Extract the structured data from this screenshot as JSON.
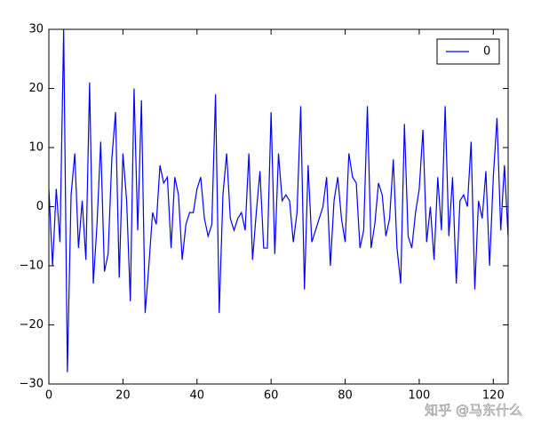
{
  "chart_data": {
    "type": "line",
    "x": [
      0,
      1,
      2,
      3,
      4,
      5,
      6,
      7,
      8,
      9,
      10,
      11,
      12,
      13,
      14,
      15,
      16,
      17,
      18,
      19,
      20,
      21,
      22,
      23,
      24,
      25,
      26,
      27,
      28,
      29,
      30,
      31,
      32,
      33,
      34,
      35,
      36,
      37,
      38,
      39,
      40,
      41,
      42,
      43,
      44,
      45,
      46,
      47,
      48,
      49,
      50,
      51,
      52,
      53,
      54,
      55,
      56,
      57,
      58,
      59,
      60,
      61,
      62,
      63,
      64,
      65,
      66,
      67,
      68,
      69,
      70,
      71,
      72,
      73,
      74,
      75,
      76,
      77,
      78,
      79,
      80,
      81,
      82,
      83,
      84,
      85,
      86,
      87,
      88,
      89,
      90,
      91,
      92,
      93,
      94,
      95,
      96,
      97,
      98,
      99,
      100,
      101,
      102,
      103,
      104,
      105,
      106,
      107,
      108,
      109,
      110,
      111,
      112,
      113,
      114,
      115,
      116,
      117,
      118,
      119,
      120,
      121,
      122,
      123,
      124
    ],
    "series": [
      {
        "name": "0",
        "color": "#0000ff",
        "values": [
          3,
          -10,
          3,
          -6,
          30,
          -28,
          2,
          9,
          -7,
          1,
          -9,
          21,
          -13,
          -3,
          11,
          -11,
          -8,
          8,
          16,
          -12,
          9,
          1,
          -16,
          20,
          -4,
          18,
          -18,
          -10,
          -1,
          -3,
          7,
          4,
          5,
          -7,
          5,
          2,
          -9,
          -3,
          -1,
          -1,
          3,
          5,
          -2,
          -5,
          -3,
          19,
          -18,
          2,
          9,
          -2,
          -4,
          -2,
          -1,
          -4,
          9,
          -9,
          -1,
          6,
          -7,
          -7,
          16,
          -8,
          9,
          1,
          2,
          1,
          -6,
          -1,
          17,
          -14,
          7,
          -6,
          -4,
          -2,
          0,
          5,
          -10,
          1,
          5,
          -2,
          -6,
          9,
          5,
          4,
          -7,
          -4,
          17,
          -7,
          -3,
          4,
          2,
          -5,
          -2,
          8,
          -7,
          -13,
          14,
          -5,
          -7,
          -1,
          3,
          13,
          -6,
          0,
          -9,
          5,
          -4,
          17,
          -5,
          5,
          -13,
          1,
          2,
          0,
          11,
          -14,
          1,
          -2,
          6,
          -10,
          5,
          15,
          -4,
          7,
          -5
        ]
      }
    ],
    "xlim": [
      0,
      124
    ],
    "xticks": [
      0,
      20,
      40,
      60,
      80,
      100,
      120
    ],
    "ylim": [
      -30,
      30
    ],
    "yticks": [
      {
        "value": -30,
        "label": "−30"
      },
      {
        "value": -20,
        "label": "−20"
      },
      {
        "value": -10,
        "label": "−10"
      },
      0,
      10,
      20,
      30
    ],
    "legend": "upper right",
    "watermark": "知乎 @马东什么"
  }
}
